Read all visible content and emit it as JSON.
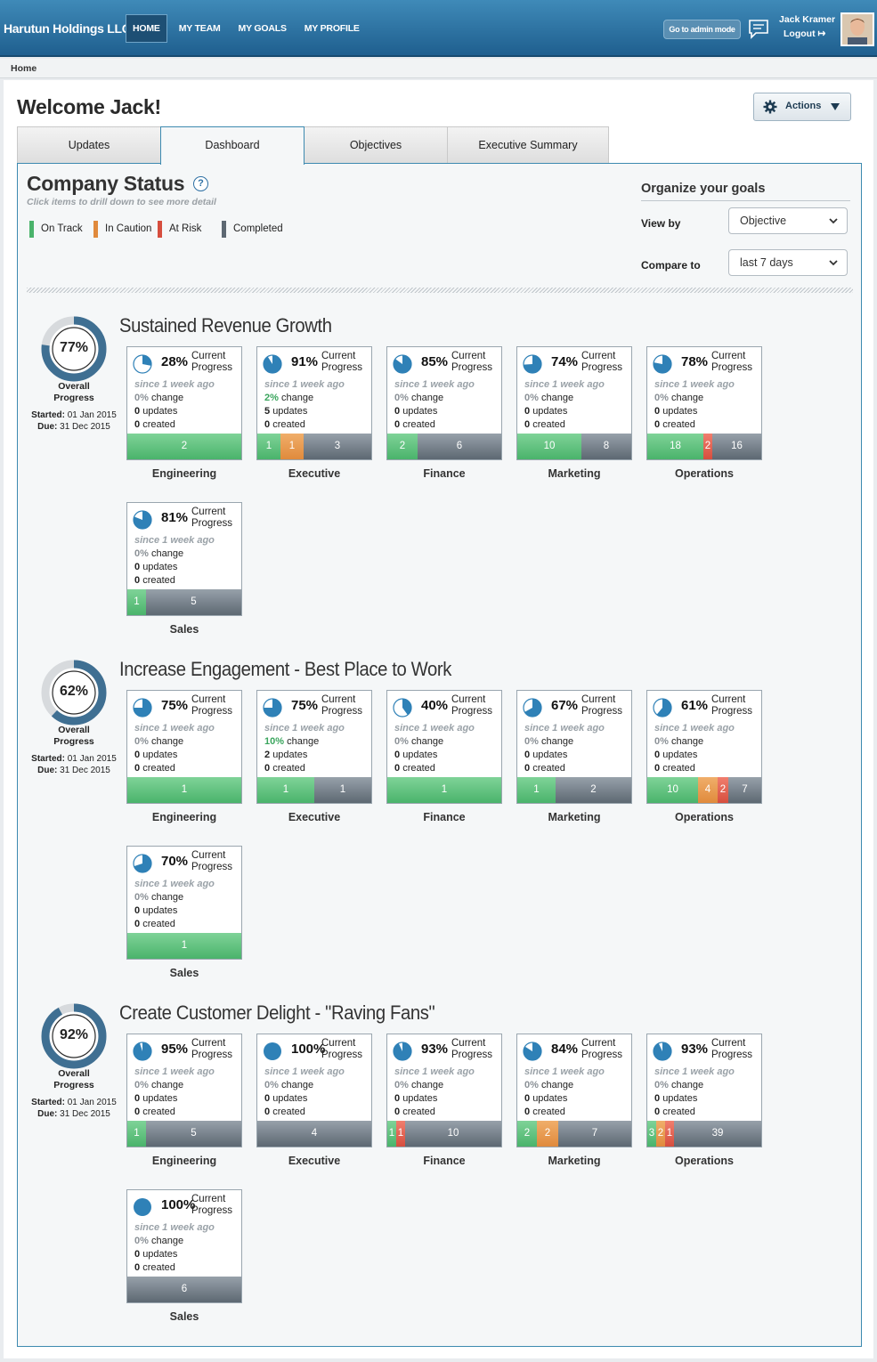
{
  "topbar": {
    "brand": "Harutun Holdings LLC",
    "nav": [
      "HOME",
      "MY TEAM",
      "MY GOALS",
      "MY PROFILE"
    ],
    "admin_button": "Go to admin mode",
    "user_name": "Jack Kramer",
    "logout": "Logout"
  },
  "breadcrumb": "Home",
  "welcome": "Welcome Jack!",
  "actions_label": "Actions",
  "tabs": [
    "Updates",
    "Dashboard",
    "Objectives",
    "Executive Summary"
  ],
  "status": {
    "title": "Company Status",
    "subtitle": "Click items to drill down to see more detail",
    "legend": [
      "On Track",
      "In Caution",
      "At Risk",
      "Completed"
    ]
  },
  "organize": {
    "title": "Organize your goals",
    "view_by_label": "View by",
    "view_by_value": "Objective",
    "compare_label": "Compare to",
    "compare_value": "last 7 days"
  },
  "labels": {
    "overall_line1": "Overall",
    "overall_line2": "Progress",
    "started": "Started:",
    "due": "Due:",
    "current": "Current",
    "progress": "Progress",
    "since": "since 1 week ago",
    "change": "change",
    "updates": "updates",
    "created": "created"
  },
  "objectives": [
    {
      "title": "Sustained Revenue Growth",
      "progress": "77%",
      "progress_value": 77,
      "started": "01 Jan 2015",
      "due": "31 Dec 2015",
      "departments": [
        {
          "name": "Engineering",
          "pct": "28%",
          "value": 28,
          "change": "0%",
          "updates": "0",
          "created": "0",
          "bar": [
            {
              "t": "g",
              "v": "2",
              "w": 128
            }
          ]
        },
        {
          "name": "Executive",
          "pct": "91%",
          "value": 91,
          "change": "2%",
          "updates": "5",
          "created": "0",
          "bar": [
            {
              "t": "g",
              "v": "1",
              "w": 26
            },
            {
              "t": "o",
              "v": "1",
              "w": 26
            },
            {
              "t": "k",
              "v": "3",
              "w": 76
            }
          ]
        },
        {
          "name": "Finance",
          "pct": "85%",
          "value": 85,
          "change": "0%",
          "updates": "0",
          "created": "0",
          "bar": [
            {
              "t": "g",
              "v": "2",
              "w": 34
            },
            {
              "t": "k",
              "v": "6",
              "w": 94
            }
          ]
        },
        {
          "name": "Marketing",
          "pct": "74%",
          "value": 74,
          "change": "0%",
          "updates": "0",
          "created": "0",
          "bar": [
            {
              "t": "g",
              "v": "10",
              "w": 72
            },
            {
              "t": "k",
              "v": "8",
              "w": 56
            }
          ]
        },
        {
          "name": "Operations",
          "pct": "78%",
          "value": 78,
          "change": "0%",
          "updates": "0",
          "created": "0",
          "bar": [
            {
              "t": "g",
              "v": "18",
              "w": 63
            },
            {
              "t": "r",
              "v": "2",
              "w": 10
            },
            {
              "t": "k",
              "v": "16",
              "w": 55
            }
          ]
        },
        {
          "name": "Sales",
          "pct": "81%",
          "value": 81,
          "change": "0%",
          "updates": "0",
          "created": "0",
          "bar": [
            {
              "t": "g",
              "v": "1",
              "w": 21
            },
            {
              "t": "k",
              "v": "5",
              "w": 107
            }
          ]
        }
      ]
    },
    {
      "title": "Increase Engagement - Best Place to Work",
      "progress": "62%",
      "progress_value": 62,
      "started": "01 Jan 2015",
      "due": "31 Dec 2015",
      "departments": [
        {
          "name": "Engineering",
          "pct": "75%",
          "value": 75,
          "change": "0%",
          "updates": "0",
          "created": "0",
          "bar": [
            {
              "t": "g",
              "v": "1",
              "w": 128
            }
          ]
        },
        {
          "name": "Executive",
          "pct": "75%",
          "value": 75,
          "change": "10%",
          "updates": "2",
          "created": "0",
          "bar": [
            {
              "t": "g",
              "v": "1",
              "w": 64
            },
            {
              "t": "k",
              "v": "1",
              "w": 64
            }
          ]
        },
        {
          "name": "Finance",
          "pct": "40%",
          "value": 40,
          "change": "0%",
          "updates": "0",
          "created": "0",
          "bar": [
            {
              "t": "g",
              "v": "1",
              "w": 128
            }
          ]
        },
        {
          "name": "Marketing",
          "pct": "67%",
          "value": 67,
          "change": "0%",
          "updates": "0",
          "created": "0",
          "bar": [
            {
              "t": "g",
              "v": "1",
              "w": 43
            },
            {
              "t": "k",
              "v": "2",
              "w": 85
            }
          ]
        },
        {
          "name": "Operations",
          "pct": "61%",
          "value": 61,
          "change": "0%",
          "updates": "0",
          "created": "0",
          "bar": [
            {
              "t": "g",
              "v": "10",
              "w": 57
            },
            {
              "t": "o",
              "v": "4",
              "w": 22
            },
            {
              "t": "r",
              "v": "2",
              "w": 12
            },
            {
              "t": "k",
              "v": "7",
              "w": 37
            }
          ]
        },
        {
          "name": "Sales",
          "pct": "70%",
          "value": 70,
          "change": "0%",
          "updates": "0",
          "created": "0",
          "bar": [
            {
              "t": "g",
              "v": "1",
              "w": 128
            }
          ]
        }
      ]
    },
    {
      "title": "Create Customer Delight - \"Raving Fans\"",
      "progress": "92%",
      "progress_value": 92,
      "started": "01 Jan 2015",
      "due": "31 Dec 2015",
      "departments": [
        {
          "name": "Engineering",
          "pct": "95%",
          "value": 95,
          "change": "0%",
          "updates": "0",
          "created": "0",
          "bar": [
            {
              "t": "g",
              "v": "1",
              "w": 21
            },
            {
              "t": "k",
              "v": "5",
              "w": 107
            }
          ]
        },
        {
          "name": "Executive",
          "pct": "100%",
          "value": 100,
          "change": "0%",
          "updates": "0",
          "created": "0",
          "bar": [
            {
              "t": "k",
              "v": "4",
              "w": 128
            }
          ]
        },
        {
          "name": "Finance",
          "pct": "93%",
          "value": 93,
          "change": "0%",
          "updates": "0",
          "created": "0",
          "bar": [
            {
              "t": "g",
              "v": "1",
              "w": 10
            },
            {
              "t": "r",
              "v": "1",
              "w": 10
            },
            {
              "t": "k",
              "v": "10",
              "w": 108
            }
          ]
        },
        {
          "name": "Marketing",
          "pct": "84%",
          "value": 84,
          "change": "0%",
          "updates": "0",
          "created": "0",
          "bar": [
            {
              "t": "g",
              "v": "2",
              "w": 22
            },
            {
              "t": "o",
              "v": "2",
              "w": 24
            },
            {
              "t": "k",
              "v": "7",
              "w": 82
            }
          ]
        },
        {
          "name": "Operations",
          "pct": "93%",
          "value": 93,
          "change": "0%",
          "updates": "0",
          "created": "0",
          "bar": [
            {
              "t": "g",
              "v": "3",
              "w": 10
            },
            {
              "t": "o",
              "v": "2",
              "w": 10
            },
            {
              "t": "r",
              "v": "1",
              "w": 10
            },
            {
              "t": "k",
              "v": "39",
              "w": 98
            }
          ]
        },
        {
          "name": "Sales",
          "pct": "100%",
          "value": 100,
          "change": "0%",
          "updates": "0",
          "created": "0",
          "bar": [
            {
              "t": "k",
              "v": "6",
              "w": 128
            }
          ]
        }
      ]
    }
  ],
  "colors": {
    "on_track": "#4ab36b",
    "in_caution": "#e08a3c",
    "at_risk": "#d64e3e",
    "completed": "#5d6872",
    "accent": "#2f81b7"
  }
}
